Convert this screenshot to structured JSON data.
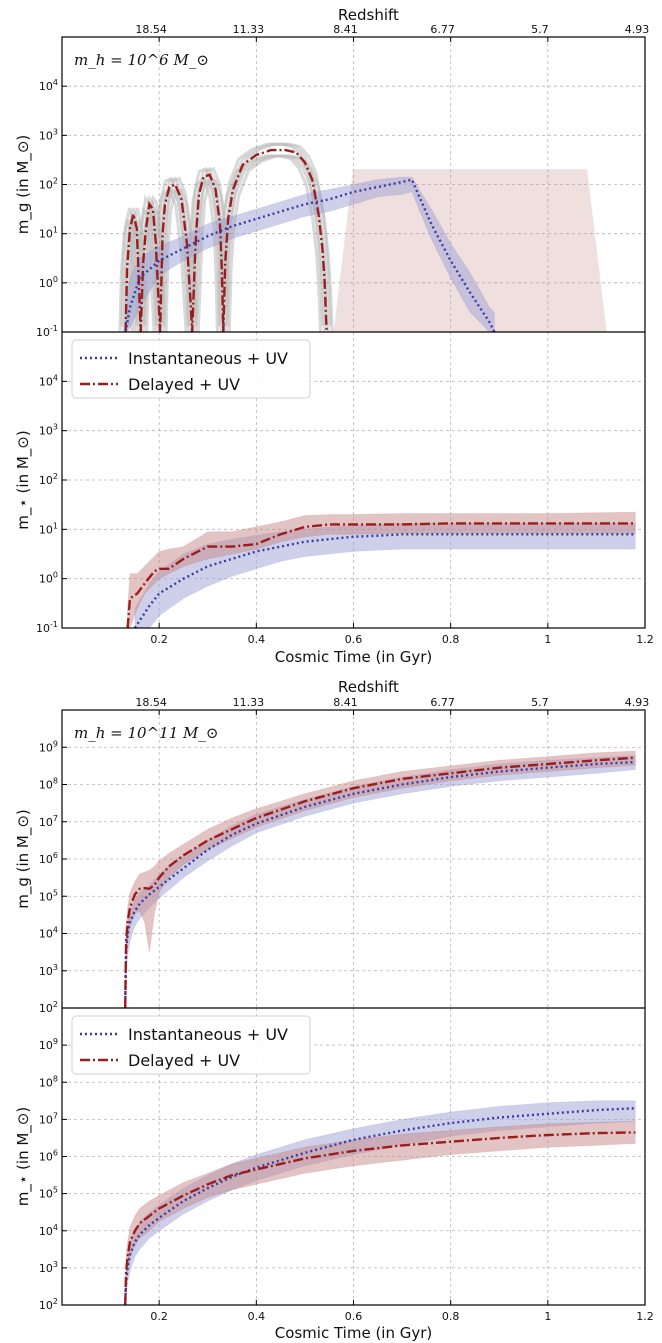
{
  "colors": {
    "instantaneous": "#3a3aa5",
    "delayed": "#9b1c1c",
    "instantaneous_band": "#9ea3d6",
    "delayed_band": "#c98a8a",
    "trajectory": "#8a8a8a",
    "grid": "#b5b5b5"
  },
  "chart_data": [
    {
      "panel": "top-low-mass",
      "type": "line",
      "annotation": "m_h = 10^6 M_⊙",
      "top_axis_title": "Redshift",
      "top_ticks": [
        {
          "t": 0.2,
          "label": "18.54"
        },
        {
          "t": 0.4,
          "label": "11.33"
        },
        {
          "t": 0.6,
          "label": "8.41"
        },
        {
          "t": 0.8,
          "label": "6.77"
        },
        {
          "t": 1.0,
          "label": "5.7"
        },
        {
          "t": 1.2,
          "label": "4.93"
        }
      ],
      "x_range": [
        0.0,
        1.2
      ],
      "x_ticks": [
        0.2,
        0.4,
        0.6,
        0.8,
        1.0,
        1.2
      ],
      "grid": true,
      "subplots": [
        {
          "ylabel": "m_g (in M_⊙)",
          "log_y": true,
          "ylim": [
            -1,
            5
          ],
          "y_ticks": [
            -1,
            0,
            1,
            2,
            3,
            4
          ],
          "series": [
            {
              "key": "delayed",
              "x": [
                0.131,
                0.134,
                0.14,
                0.147,
                0.154,
                0.157,
                0.162,
                0.167,
                0.173,
                0.18,
                0.187,
                0.193,
                0.198,
                0.202,
                0.205,
                0.207,
                0.212,
                0.221,
                0.233,
                0.246,
                0.257,
                0.264,
                0.268,
                0.273,
                0.276,
                0.282,
                0.291,
                0.304,
                0.316,
                0.325,
                0.329,
                0.332,
                0.336,
                0.342,
                0.352,
                0.372,
                0.4,
                0.43,
                0.46,
                0.482,
                0.5,
                0.515,
                0.528,
                0.536,
                0.54,
                0.542,
                0.543,
                0.544,
                0.545
              ],
              "y": [
                -1,
                0.3,
                1.1,
                1.4,
                1.1,
                0.3,
                -1,
                0.4,
                1.1,
                1.6,
                1.5,
                0.8,
                -0.2,
                -1,
                0.2,
                1.0,
                1.6,
                1.95,
                2.0,
                1.7,
                0.8,
                -0.3,
                -1,
                0.3,
                1.0,
                1.8,
                2.15,
                2.2,
                1.9,
                1.2,
                0.3,
                -1,
                0.4,
                1.3,
                1.9,
                2.4,
                2.6,
                2.7,
                2.7,
                2.65,
                2.45,
                2.1,
                1.4,
                0.7,
                0.1,
                -0.3,
                -0.6,
                -0.85,
                -1
              ]
            },
            {
              "key": "instantaneous",
              "x": [
                0.131,
                0.14,
                0.16,
                0.2,
                0.25,
                0.3,
                0.35,
                0.4,
                0.45,
                0.5,
                0.55,
                0.6,
                0.65,
                0.7,
                0.72,
                0.76,
                0.8,
                0.84,
                0.88,
                0.89
              ],
              "y": [
                -1,
                -0.5,
                0.1,
                0.45,
                0.7,
                0.95,
                1.15,
                1.3,
                1.45,
                1.6,
                1.7,
                1.85,
                1.95,
                2.05,
                2.1,
                1.2,
                0.45,
                -0.2,
                -0.8,
                -1
              ],
              "lo": [
                -1,
                -0.9,
                -0.5,
                0.15,
                0.45,
                0.7,
                0.9,
                1.05,
                1.2,
                1.35,
                1.45,
                1.6,
                1.75,
                1.8,
                1.85,
                0.9,
                0.1,
                -0.6,
                -1,
                -1
              ],
              "hi": [
                -0.4,
                0.1,
                0.5,
                0.75,
                0.95,
                1.2,
                1.35,
                1.5,
                1.65,
                1.8,
                1.9,
                2.0,
                2.1,
                2.15,
                2.15,
                1.5,
                0.8,
                0.2,
                -0.5,
                -0.6
              ]
            }
          ]
        },
        {
          "ylabel": "m_⋆ (in M_⊙)",
          "log_y": true,
          "ylim": [
            -1,
            5
          ],
          "y_ticks": [
            -1,
            0,
            1,
            2,
            3,
            4
          ],
          "legend": [
            "Instantaneous + UV",
            "Delayed + UV"
          ],
          "legend_position": "top-left",
          "series": [
            {
              "key": "instantaneous",
              "x": [
                0.15,
                0.18,
                0.2,
                0.25,
                0.3,
                0.35,
                0.4,
                0.45,
                0.5,
                0.55,
                0.6,
                0.65,
                0.7,
                0.75,
                0.8,
                1.0,
                1.18
              ],
              "y": [
                -1,
                -0.55,
                -0.3,
                0.0,
                0.25,
                0.4,
                0.55,
                0.65,
                0.75,
                0.8,
                0.85,
                0.87,
                0.9,
                0.9,
                0.9,
                0.9,
                0.9
              ],
              "lo": [
                -1,
                -1,
                -0.75,
                -0.4,
                -0.15,
                0.05,
                0.2,
                0.35,
                0.45,
                0.5,
                0.55,
                0.58,
                0.6,
                0.6,
                0.6,
                0.6,
                0.6
              ],
              "hi": [
                -0.6,
                -0.1,
                0.15,
                0.5,
                0.7,
                0.8,
                0.88,
                0.95,
                1.0,
                1.05,
                1.08,
                1.1,
                1.12,
                1.12,
                1.12,
                1.12,
                1.12
              ]
            },
            {
              "key": "delayed",
              "x": [
                0.135,
                0.14,
                0.155,
                0.17,
                0.19,
                0.2,
                0.22,
                0.25,
                0.3,
                0.35,
                0.4,
                0.45,
                0.5,
                0.55,
                0.6,
                0.7,
                0.8,
                0.9,
                1.0,
                1.18
              ],
              "y": [
                -1,
                -0.4,
                -0.3,
                -0.1,
                0.15,
                0.2,
                0.2,
                0.4,
                0.65,
                0.65,
                0.7,
                0.9,
                1.05,
                1.1,
                1.1,
                1.1,
                1.12,
                1.12,
                1.12,
                1.12
              ],
              "lo": [
                -1,
                -1,
                -0.6,
                -0.3,
                -0.1,
                0.0,
                0.1,
                0.25,
                0.4,
                0.5,
                0.6,
                0.75,
                0.85,
                0.9,
                0.9,
                0.92,
                0.92,
                0.92,
                0.92,
                0.92
              ],
              "hi": [
                -0.6,
                0.1,
                0.1,
                0.25,
                0.45,
                0.55,
                0.6,
                0.65,
                0.95,
                0.95,
                1.05,
                1.15,
                1.28,
                1.3,
                1.3,
                1.32,
                1.32,
                1.32,
                1.32,
                1.35
              ]
            }
          ]
        }
      ],
      "xlabel": "Cosmic Time (in Gyr)"
    },
    {
      "panel": "bottom-high-mass",
      "type": "line",
      "annotation": "m_h = 10^11 M_⊙",
      "top_axis_title": "Redshift",
      "top_ticks": [
        {
          "t": 0.2,
          "label": "18.54"
        },
        {
          "t": 0.4,
          "label": "11.33"
        },
        {
          "t": 0.6,
          "label": "8.41"
        },
        {
          "t": 0.8,
          "label": "6.77"
        },
        {
          "t": 1.0,
          "label": "5.7"
        },
        {
          "t": 1.2,
          "label": "4.93"
        }
      ],
      "x_range": [
        0.0,
        1.2
      ],
      "x_ticks": [
        0.2,
        0.4,
        0.6,
        0.8,
        1.0,
        1.2
      ],
      "grid": true,
      "subplots": [
        {
          "ylabel": "m_g (in M_⊙)",
          "log_y": true,
          "ylim": [
            2,
            10
          ],
          "y_ticks": [
            2,
            3,
            4,
            5,
            6,
            7,
            8,
            9
          ],
          "series": [
            {
              "key": "instantaneous",
              "x": [
                0.13,
                0.132,
                0.135,
                0.14,
                0.15,
                0.16,
                0.18,
                0.2,
                0.25,
                0.3,
                0.35,
                0.4,
                0.5,
                0.6,
                0.7,
                0.8,
                0.9,
                1.0,
                1.1,
                1.18
              ],
              "y": [
                2.0,
                3.5,
                4.0,
                4.3,
                4.6,
                4.8,
                5.05,
                5.25,
                5.75,
                6.25,
                6.65,
                6.95,
                7.4,
                7.75,
                8.0,
                8.2,
                8.35,
                8.45,
                8.55,
                8.6
              ],
              "lo": [
                2.0,
                3.0,
                3.4,
                3.8,
                4.2,
                4.4,
                4.7,
                4.95,
                5.5,
                5.95,
                6.35,
                6.7,
                7.15,
                7.5,
                7.75,
                7.95,
                8.1,
                8.2,
                8.3,
                8.4
              ],
              "hi": [
                2.3,
                3.9,
                4.3,
                4.6,
                4.9,
                5.1,
                5.3,
                5.6,
                6.1,
                6.5,
                6.9,
                7.2,
                7.6,
                7.95,
                8.2,
                8.4,
                8.55,
                8.65,
                8.72,
                8.78
              ]
            },
            {
              "key": "delayed",
              "x": [
                0.13,
                0.132,
                0.135,
                0.14,
                0.15,
                0.16,
                0.17,
                0.18,
                0.19,
                0.2,
                0.22,
                0.25,
                0.3,
                0.35,
                0.4,
                0.5,
                0.6,
                0.7,
                0.8,
                0.9,
                1.0,
                1.1,
                1.18
              ],
              "y": [
                2.0,
                3.8,
                4.3,
                4.7,
                5.05,
                5.2,
                5.22,
                5.2,
                5.3,
                5.5,
                5.8,
                6.1,
                6.5,
                6.8,
                7.1,
                7.55,
                7.9,
                8.15,
                8.3,
                8.45,
                8.55,
                8.65,
                8.72
              ],
              "lo": [
                2.0,
                3.3,
                3.8,
                4.2,
                4.55,
                4.6,
                4.3,
                3.5,
                4.5,
                5.1,
                5.5,
                5.85,
                6.25,
                6.55,
                6.85,
                7.3,
                7.65,
                7.9,
                8.1,
                8.25,
                8.35,
                8.45,
                8.52
              ],
              "hi": [
                2.5,
                4.2,
                4.7,
                5.1,
                5.4,
                5.6,
                5.65,
                5.7,
                5.8,
                5.95,
                6.15,
                6.4,
                6.8,
                7.1,
                7.35,
                7.75,
                8.1,
                8.35,
                8.5,
                8.65,
                8.75,
                8.85,
                8.9
              ]
            }
          ]
        },
        {
          "ylabel": "m_⋆ (in M_⊙)",
          "log_y": true,
          "ylim": [
            2,
            10
          ],
          "y_ticks": [
            2,
            3,
            4,
            5,
            6,
            7,
            8,
            9
          ],
          "legend": [
            "Instantaneous + UV",
            "Delayed + UV"
          ],
          "legend_position": "top-left",
          "series": [
            {
              "key": "instantaneous",
              "x": [
                0.13,
                0.132,
                0.135,
                0.14,
                0.15,
                0.16,
                0.18,
                0.2,
                0.25,
                0.3,
                0.35,
                0.4,
                0.5,
                0.6,
                0.7,
                0.8,
                0.9,
                1.0,
                1.1,
                1.18
              ],
              "y": [
                2.0,
                2.6,
                3.0,
                3.35,
                3.7,
                3.9,
                4.15,
                4.35,
                4.8,
                5.15,
                5.45,
                5.7,
                6.1,
                6.45,
                6.7,
                6.9,
                7.05,
                7.15,
                7.25,
                7.3
              ],
              "lo": [
                2.0,
                2.2,
                2.6,
                2.9,
                3.3,
                3.5,
                3.8,
                4.0,
                4.45,
                4.8,
                5.1,
                5.35,
                5.75,
                6.05,
                6.3,
                6.55,
                6.7,
                6.8,
                6.9,
                6.95
              ],
              "hi": [
                2.2,
                3.0,
                3.4,
                3.7,
                4.0,
                4.25,
                4.5,
                4.7,
                5.15,
                5.5,
                5.8,
                6.05,
                6.45,
                6.75,
                7.0,
                7.2,
                7.35,
                7.45,
                7.5,
                7.5
              ]
            },
            {
              "key": "delayed",
              "x": [
                0.13,
                0.132,
                0.135,
                0.14,
                0.15,
                0.16,
                0.18,
                0.2,
                0.25,
                0.3,
                0.35,
                0.4,
                0.5,
                0.6,
                0.7,
                0.8,
                0.9,
                1.0,
                1.1,
                1.18
              ],
              "y": [
                2.0,
                2.9,
                3.3,
                3.7,
                4.0,
                4.2,
                4.4,
                4.6,
                4.95,
                5.25,
                5.5,
                5.65,
                5.95,
                6.15,
                6.3,
                6.4,
                6.5,
                6.58,
                6.63,
                6.65
              ],
              "lo": [
                2.0,
                2.5,
                2.9,
                3.3,
                3.6,
                3.8,
                4.0,
                4.25,
                4.6,
                4.9,
                5.1,
                5.25,
                5.55,
                5.75,
                5.9,
                6.05,
                6.15,
                6.25,
                6.3,
                6.35
              ],
              "hi": [
                2.3,
                3.3,
                3.7,
                4.1,
                4.4,
                4.6,
                4.8,
                4.95,
                5.3,
                5.55,
                5.8,
                5.95,
                6.25,
                6.45,
                6.6,
                6.7,
                6.8,
                6.88,
                6.92,
                6.95
              ]
            }
          ]
        }
      ],
      "xlabel": "Cosmic Time (in Gyr)"
    }
  ]
}
